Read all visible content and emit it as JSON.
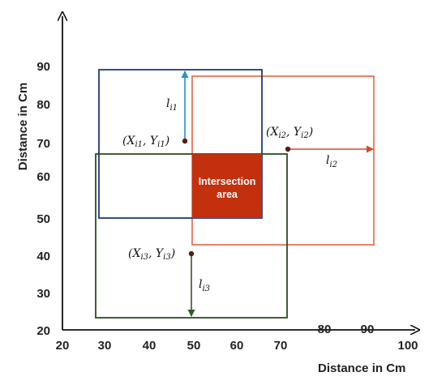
{
  "axes": {
    "x_title": "Distance in Cm",
    "y_title": "Distance in Cm",
    "x_ticks": [
      "20",
      "30",
      "40",
      "50",
      "60",
      "70",
      "80",
      "90",
      "100"
    ],
    "y_ticks": [
      "20",
      "30",
      "40",
      "50",
      "60",
      "70",
      "80",
      "90"
    ]
  },
  "nodes": [
    {
      "id": "node-1",
      "point_label": "(X_i1, Y_i1)",
      "arrow_label": "l_i1",
      "color": "#1e3a7a",
      "arrow_color": "#2a8fcf"
    },
    {
      "id": "node-2",
      "point_label": "(X_i2, Y_i2)",
      "arrow_label": "l_i2",
      "color": "#e8735a",
      "arrow_color": "#d9482b"
    },
    {
      "id": "node-3",
      "point_label": "(X_i3, Y_i3)",
      "arrow_label": "l_i3",
      "color": "#2e4a22",
      "arrow_color": "#2e5b2a"
    }
  ],
  "intersection": {
    "label_line1": "Intersection",
    "label_line2": "area",
    "color": "#c2300e"
  },
  "point_color": "#5a1a10",
  "axis_color": "#111111"
}
